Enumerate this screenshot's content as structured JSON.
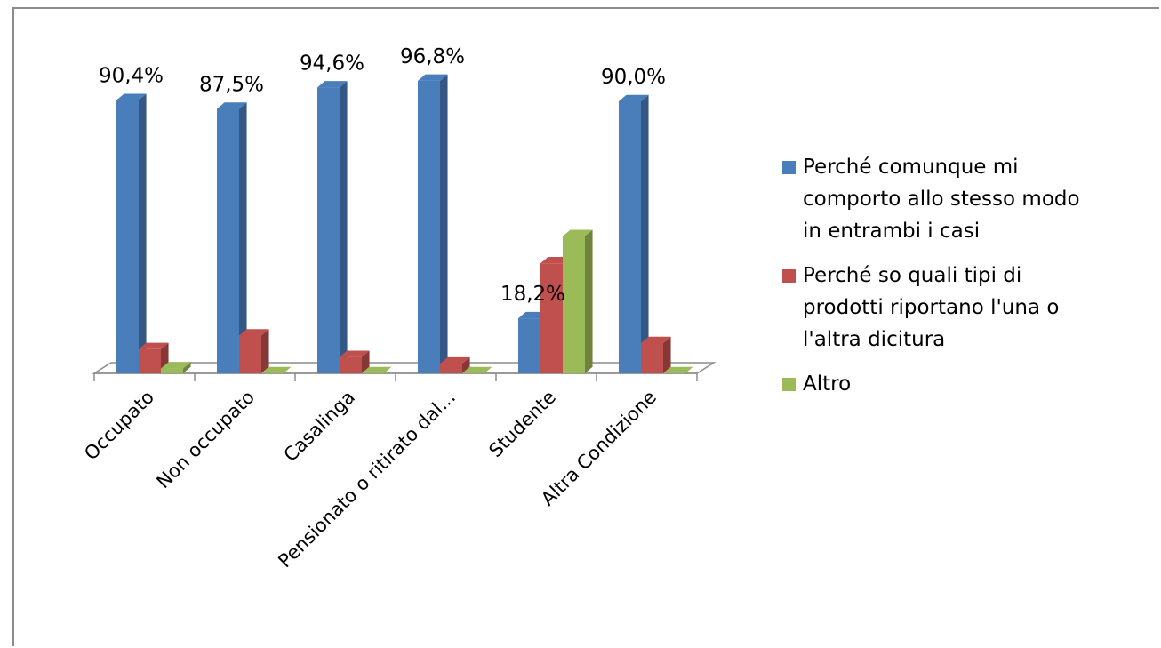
{
  "chart_data": {
    "type": "bar",
    "categories": [
      "Occupato",
      "Non occupato",
      "Casalinga",
      "Pensionato o ritirato dal...",
      "Studente",
      "Altra Condizione"
    ],
    "series": [
      {
        "name": "Perché comunque mi comporto allo stesso modo in entrambi i casi",
        "color": "#4a7ebb",
        "values": [
          90.4,
          87.5,
          94.6,
          96.8,
          18.2,
          90.0
        ]
      },
      {
        "name": "Perché so quali tipi di prodotti riportano l'una o l'altra dicitura",
        "color": "#c0504d",
        "values": [
          8.0,
          12.5,
          5.4,
          3.2,
          36.4,
          10.0
        ]
      },
      {
        "name": "Altro",
        "color": "#9bbb59",
        "values": [
          1.6,
          0.0,
          0.0,
          0.0,
          45.4,
          0.0
        ]
      }
    ],
    "data_labels": [
      "90,4%",
      "87,5%",
      "94,6%",
      "96,8%",
      "18,2%",
      "90,0%"
    ],
    "ylim": [
      0,
      100
    ],
    "grid": false,
    "legend_position": "right"
  }
}
